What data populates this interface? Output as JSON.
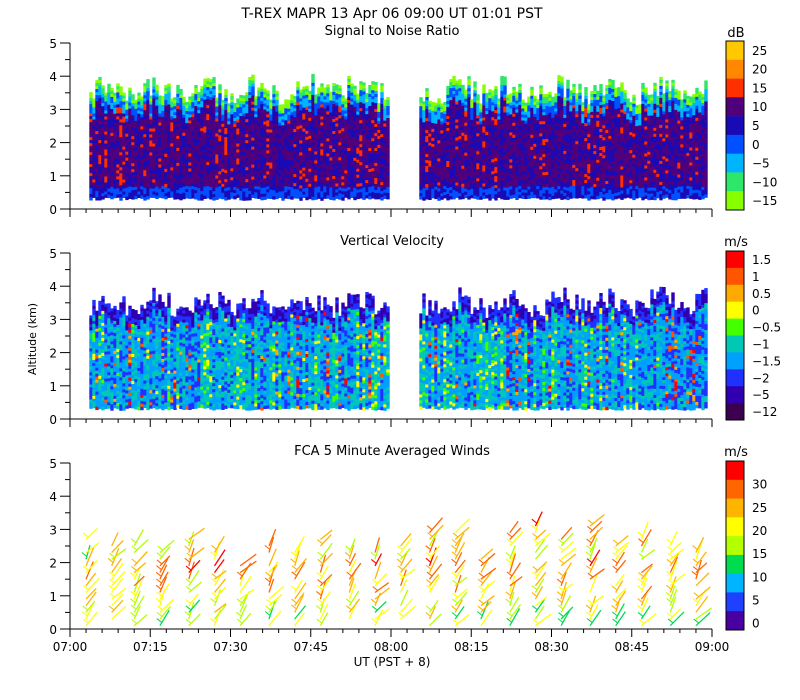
{
  "figure": {
    "title": "T-REX  MAPR 13 Apr 06  09:00 UT  01:01  PST",
    "xlabel": "UT  (PST + 8)",
    "ylabel": "Altitude (km)",
    "x_ticks": [
      "07:00",
      "07:15",
      "07:30",
      "07:45",
      "08:00",
      "08:15",
      "08:30",
      "08:45",
      "09:00"
    ]
  },
  "chart_data": [
    {
      "type": "heatmap",
      "title": "Signal to Noise Ratio",
      "colorbar_unit": "dB",
      "colorbar_labels": [
        "25",
        "20",
        "15",
        "10",
        "5",
        "0",
        "−5",
        "−10",
        "−15"
      ],
      "colorbar_colors": [
        "#ffc800",
        "#ff8800",
        "#ff3000",
        "#50007a",
        "#1a0ab5",
        "#0050ff",
        "#00b4ff",
        "#2ee66a",
        "#88ff00"
      ],
      "yticks": [
        "0",
        "1",
        "2",
        "3",
        "4",
        "5"
      ],
      "ylim": [
        0,
        5
      ],
      "xlim_hours": [
        7.0,
        9.0
      ],
      "data_gap_hours": [
        7.99,
        8.08
      ],
      "echo_top_km": 3.6,
      "echo_bottom_km": 0.35
    },
    {
      "type": "heatmap",
      "title": "Vertical Velocity",
      "colorbar_unit": "m/s",
      "colorbar_labels": [
        "1.5",
        "1",
        "0.5",
        "0",
        "−0.5",
        "−1",
        "−1.5",
        "−2",
        "−5",
        "−12"
      ],
      "colorbar_colors": [
        "#ff0000",
        "#ff5500",
        "#ffaa00",
        "#ffff00",
        "#44ff00",
        "#00c8b4",
        "#00a0ff",
        "#2030ff",
        "#3000b0",
        "#3c0050"
      ],
      "yticks": [
        "0",
        "1",
        "2",
        "3",
        "4",
        "5"
      ],
      "ylim": [
        0,
        5
      ],
      "xlim_hours": [
        7.0,
        9.0
      ],
      "data_gap_hours": [
        7.99,
        8.08
      ],
      "echo_top_km": 3.5,
      "echo_bottom_km": 0.35
    },
    {
      "type": "scatter",
      "title": "FCA 5 Minute Averaged Winds",
      "colorbar_unit": "m/s",
      "colorbar_labels": [
        "30",
        "25",
        "20",
        "15",
        "10",
        "5",
        "0"
      ],
      "colorbar_colors": [
        "#ff0000",
        "#ff6600",
        "#ffb400",
        "#ffff00",
        "#b4ff00",
        "#00dc50",
        "#00b4ff",
        "#2040ff",
        "#4800a0"
      ],
      "yticks": [
        "0",
        "1",
        "2",
        "3",
        "4",
        "5"
      ],
      "ylim": [
        0,
        5
      ],
      "xlim_hours": [
        7.0,
        9.0
      ],
      "barb_times_hours": [
        7.05,
        7.13,
        7.2,
        7.28,
        7.37,
        7.45,
        7.53,
        7.62,
        7.7,
        7.78,
        7.87,
        7.95,
        8.03,
        8.12,
        8.2,
        8.28,
        8.37,
        8.45,
        8.53,
        8.62,
        8.7,
        8.78,
        8.87,
        8.95
      ],
      "barb_altitudes_km": [
        0.1,
        0.3,
        0.5,
        0.7,
        0.9,
        1.1,
        1.3,
        1.5,
        1.7,
        1.9,
        2.1,
        2.3,
        2.5,
        2.7,
        2.9,
        3.1
      ]
    }
  ]
}
